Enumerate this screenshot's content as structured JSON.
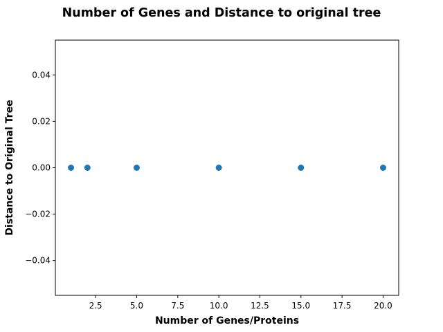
{
  "chart_data": {
    "type": "scatter",
    "title": "Number of Genes and Distance to original tree",
    "xlabel": "Number of Genes/Proteins",
    "ylabel": "Distance to Original Tree",
    "x": [
      1,
      2,
      5,
      10,
      15,
      20
    ],
    "y": [
      0,
      0,
      0,
      0,
      0,
      0
    ],
    "xlim": [
      0.05,
      20.95
    ],
    "ylim": [
      -0.055,
      0.055
    ],
    "xticks": [
      2.5,
      5.0,
      7.5,
      10.0,
      12.5,
      15.0,
      17.5,
      20.0
    ],
    "xtick_labels": [
      "2.5",
      "5.0",
      "7.5",
      "10.0",
      "12.5",
      "15.0",
      "17.5",
      "20.0"
    ],
    "yticks": [
      -0.04,
      -0.02,
      0.0,
      0.02,
      0.04
    ],
    "ytick_labels": [
      "−0.04",
      "−0.02",
      "0.00",
      "0.02",
      "0.04"
    ],
    "grid": false,
    "marker_color": "#1f77b4"
  }
}
